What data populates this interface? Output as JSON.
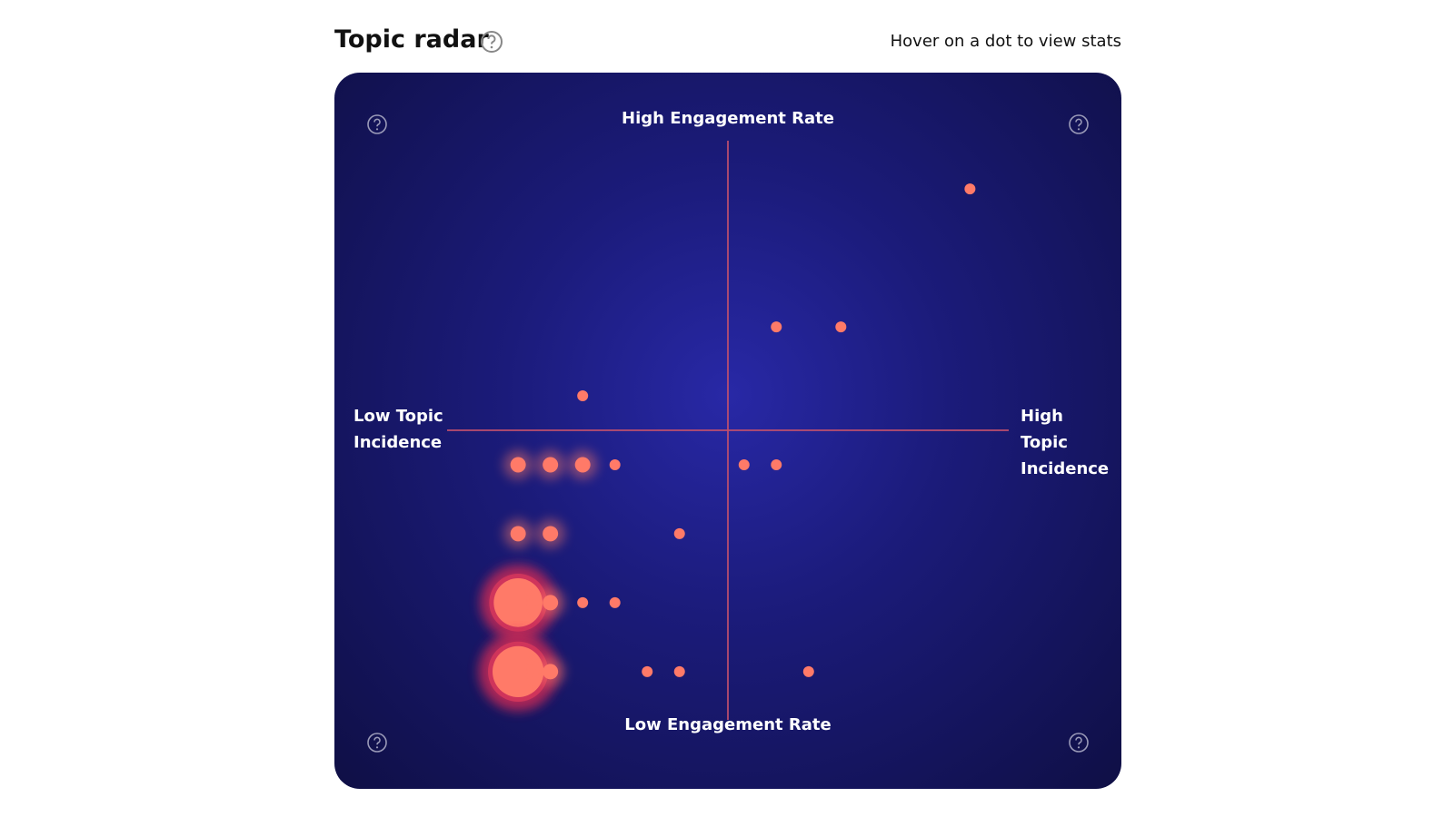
{
  "header": {
    "title": "Topic radar",
    "hint": "Hover on a dot to view stats"
  },
  "chart_data": {
    "type": "scatter",
    "top_label": "High Engagement Rate",
    "bottom_label": "Low Engagement Rate",
    "left_label": "Low Topic Incidence",
    "right_label": "High Topic Incidence",
    "color": "#ff7a68",
    "x": [
      7.5,
      1.5,
      3.5,
      -4.5,
      -6.5,
      -5.5,
      -4.5,
      -3.5,
      0.5,
      1.5,
      -6.5,
      -5.5,
      -1.5,
      -6.5,
      -5.5,
      -4.5,
      -3.5,
      -6.5,
      -5.5,
      -2.5,
      -1.5,
      2.5
    ],
    "values": [
      3.5,
      1.5,
      1.5,
      0.5,
      -0.5,
      -0.5,
      -0.5,
      -0.5,
      -0.5,
      -0.5,
      -1.5,
      -1.5,
      -1.5,
      -2.5,
      -2.5,
      -2.5,
      -2.5,
      -3.5,
      -3.5,
      -3.5,
      -3.5,
      -3.5
    ],
    "sizes": [
      1,
      1,
      1,
      1,
      2,
      2,
      2,
      1,
      1,
      1,
      2,
      2,
      1,
      20,
      2,
      1,
      1,
      22,
      2,
      1,
      1,
      1
    ],
    "xlim": [
      -8.7,
      8.7
    ],
    "ylim": [
      -4.2,
      4.2
    ]
  }
}
